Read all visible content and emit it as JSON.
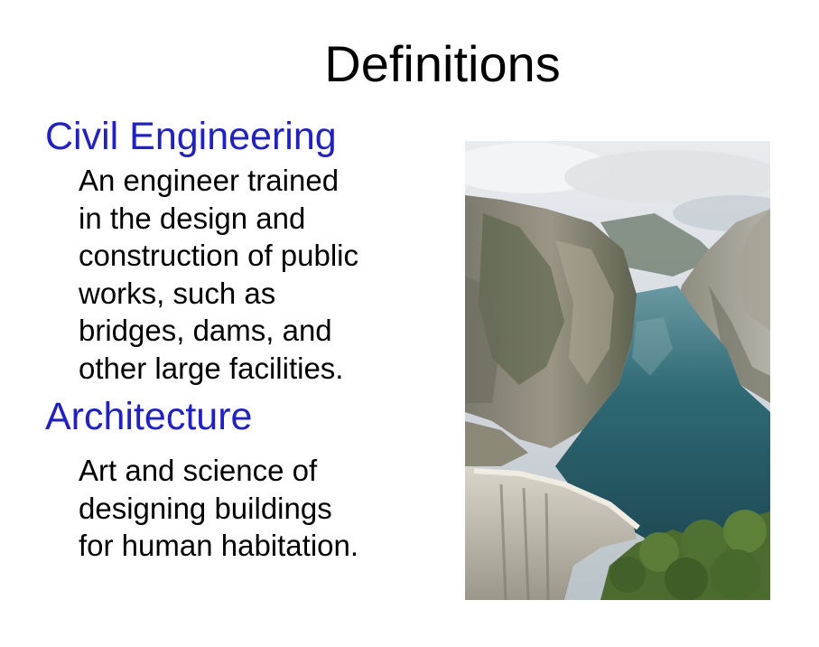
{
  "slide": {
    "title": "Definitions",
    "terms": [
      {
        "term": "Civil Engineering",
        "definition_lines": [
          "An engineer trained",
          "in the design and",
          "construction of public",
          "works, such as",
          "bridges, dams, and",
          "other large facilities."
        ]
      },
      {
        "term": "Architecture",
        "definition_lines": [
          "Art and science of",
          "designing buildings",
          "for human habitation."
        ]
      }
    ],
    "colors": {
      "term": "#1f1fd2",
      "text": "#000000",
      "background": "#ffffff"
    },
    "image": {
      "subject": "dam-gorge-photo"
    }
  }
}
